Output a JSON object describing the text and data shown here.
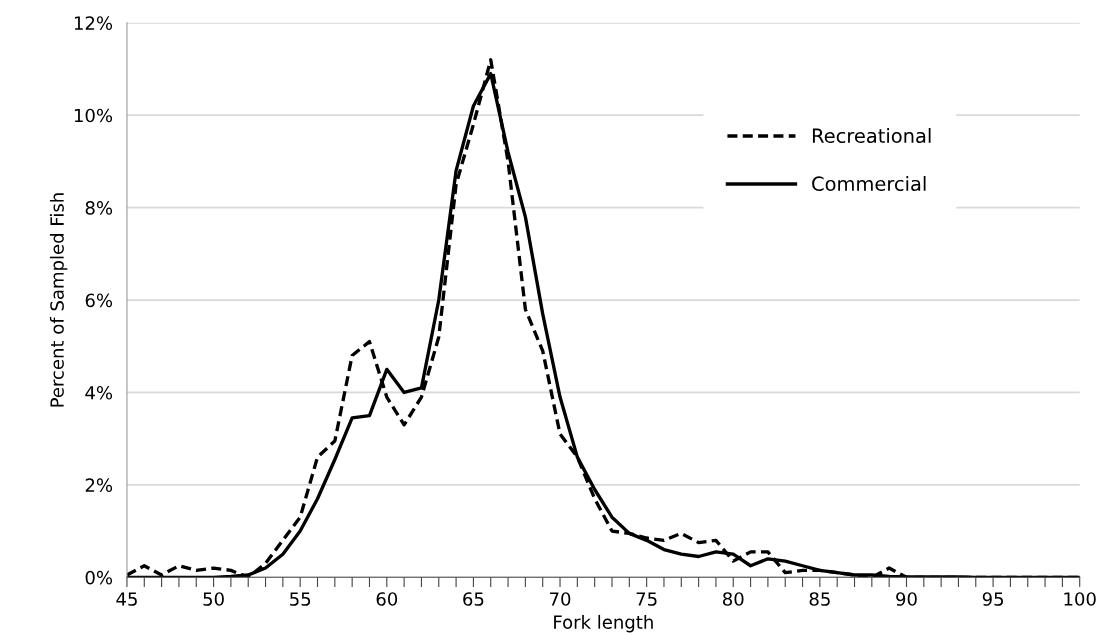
{
  "chart_data": {
    "type": "line",
    "xlabel": "Fork length",
    "ylabel": "Percent of Sampled Fish",
    "x": [
      45,
      46,
      47,
      48,
      49,
      50,
      51,
      52,
      53,
      54,
      55,
      56,
      57,
      58,
      59,
      60,
      61,
      62,
      63,
      64,
      65,
      66,
      67,
      68,
      69,
      70,
      71,
      72,
      73,
      74,
      75,
      76,
      77,
      78,
      79,
      80,
      81,
      82,
      83,
      84,
      85,
      86,
      87,
      88,
      89,
      90,
      91,
      92,
      93,
      94,
      95,
      96,
      97,
      98,
      99,
      100
    ],
    "series": [
      {
        "name": "Recreational",
        "color": "#000000",
        "line_style": "dashed",
        "values": [
          0.05,
          0.25,
          0.05,
          0.25,
          0.15,
          0.2,
          0.15,
          0.0,
          0.3,
          0.8,
          1.3,
          2.6,
          2.95,
          4.8,
          5.1,
          3.9,
          3.3,
          3.9,
          5.2,
          8.5,
          9.8,
          11.2,
          9.0,
          5.8,
          4.9,
          3.1,
          2.6,
          1.7,
          1.0,
          0.95,
          0.85,
          0.8,
          0.95,
          0.75,
          0.8,
          0.35,
          0.55,
          0.55,
          0.1,
          0.15,
          0.15,
          0.1,
          0.05,
          0.0,
          0.2,
          0.0,
          0,
          0,
          0,
          0,
          0,
          0,
          0,
          0,
          0,
          0
        ]
      },
      {
        "name": "Commercial",
        "color": "#000000",
        "line_style": "solid",
        "values": [
          0,
          0,
          0,
          0,
          0,
          0,
          0.02,
          0.05,
          0.2,
          0.5,
          1.0,
          1.7,
          2.55,
          3.45,
          3.5,
          4.5,
          4.0,
          4.1,
          6.0,
          8.8,
          10.2,
          10.9,
          9.2,
          7.8,
          5.7,
          3.9,
          2.6,
          1.9,
          1.3,
          0.95,
          0.8,
          0.6,
          0.5,
          0.45,
          0.55,
          0.5,
          0.25,
          0.4,
          0.35,
          0.25,
          0.15,
          0.1,
          0.05,
          0.05,
          0.02,
          0.01,
          0.01,
          0.01,
          0.01,
          0,
          0,
          0,
          0,
          0,
          0,
          0
        ]
      }
    ],
    "xlim": [
      45,
      100
    ],
    "xticks": [
      45,
      {
        "value": 46,
        "label": null
      },
      {
        "value": 47,
        "label": null
      },
      {
        "value": 48,
        "label": null
      },
      {
        "value": 49,
        "label": null
      },
      50,
      {
        "value": 51,
        "label": null
      },
      {
        "value": 52,
        "label": null
      },
      {
        "value": 53,
        "label": null
      },
      {
        "value": 54,
        "label": null
      },
      55,
      {
        "value": 56,
        "label": null
      },
      {
        "value": 57,
        "label": null
      },
      {
        "value": 58,
        "label": null
      },
      {
        "value": 59,
        "label": null
      },
      60,
      {
        "value": 61,
        "label": null
      },
      {
        "value": 62,
        "label": null
      },
      {
        "value": 63,
        "label": null
      },
      {
        "value": 64,
        "label": null
      },
      65,
      {
        "value": 66,
        "label": null
      },
      {
        "value": 67,
        "label": null
      },
      {
        "value": 68,
        "label": null
      },
      {
        "value": 69,
        "label": null
      },
      70,
      {
        "value": 71,
        "label": null
      },
      {
        "value": 72,
        "label": null
      },
      {
        "value": 73,
        "label": null
      },
      {
        "value": 74,
        "label": null
      },
      75,
      {
        "value": 76,
        "label": null
      },
      {
        "value": 77,
        "label": null
      },
      {
        "value": 78,
        "label": null
      },
      {
        "value": 79,
        "label": null
      },
      80,
      {
        "value": 81,
        "label": null
      },
      {
        "value": 82,
        "label": null
      },
      {
        "value": 83,
        "label": null
      },
      {
        "value": 84,
        "label": null
      },
      85,
      {
        "value": 86,
        "label": null
      },
      {
        "value": 87,
        "label": null
      },
      {
        "value": 88,
        "label": null
      },
      {
        "value": 89,
        "label": null
      },
      90,
      {
        "value": 91,
        "label": null
      },
      {
        "value": 92,
        "label": null
      },
      {
        "value": 93,
        "label": null
      },
      {
        "value": 94,
        "label": null
      },
      95,
      {
        "value": 96,
        "label": null
      },
      {
        "value": 97,
        "label": null
      },
      {
        "value": 98,
        "label": null
      },
      {
        "value": 99,
        "label": null
      },
      100
    ],
    "ylim": [
      0,
      12
    ],
    "yticks": [
      {
        "value": 0,
        "label": "0%"
      },
      {
        "value": 2,
        "label": "2%"
      },
      {
        "value": 4,
        "label": "4%"
      },
      {
        "value": 6,
        "label": "6%"
      },
      {
        "value": 8,
        "label": "8%"
      },
      {
        "value": 10,
        "label": "10%"
      },
      {
        "value": 12,
        "label": "12%"
      }
    ],
    "grid": "y",
    "legend": "right",
    "marker": "none"
  }
}
